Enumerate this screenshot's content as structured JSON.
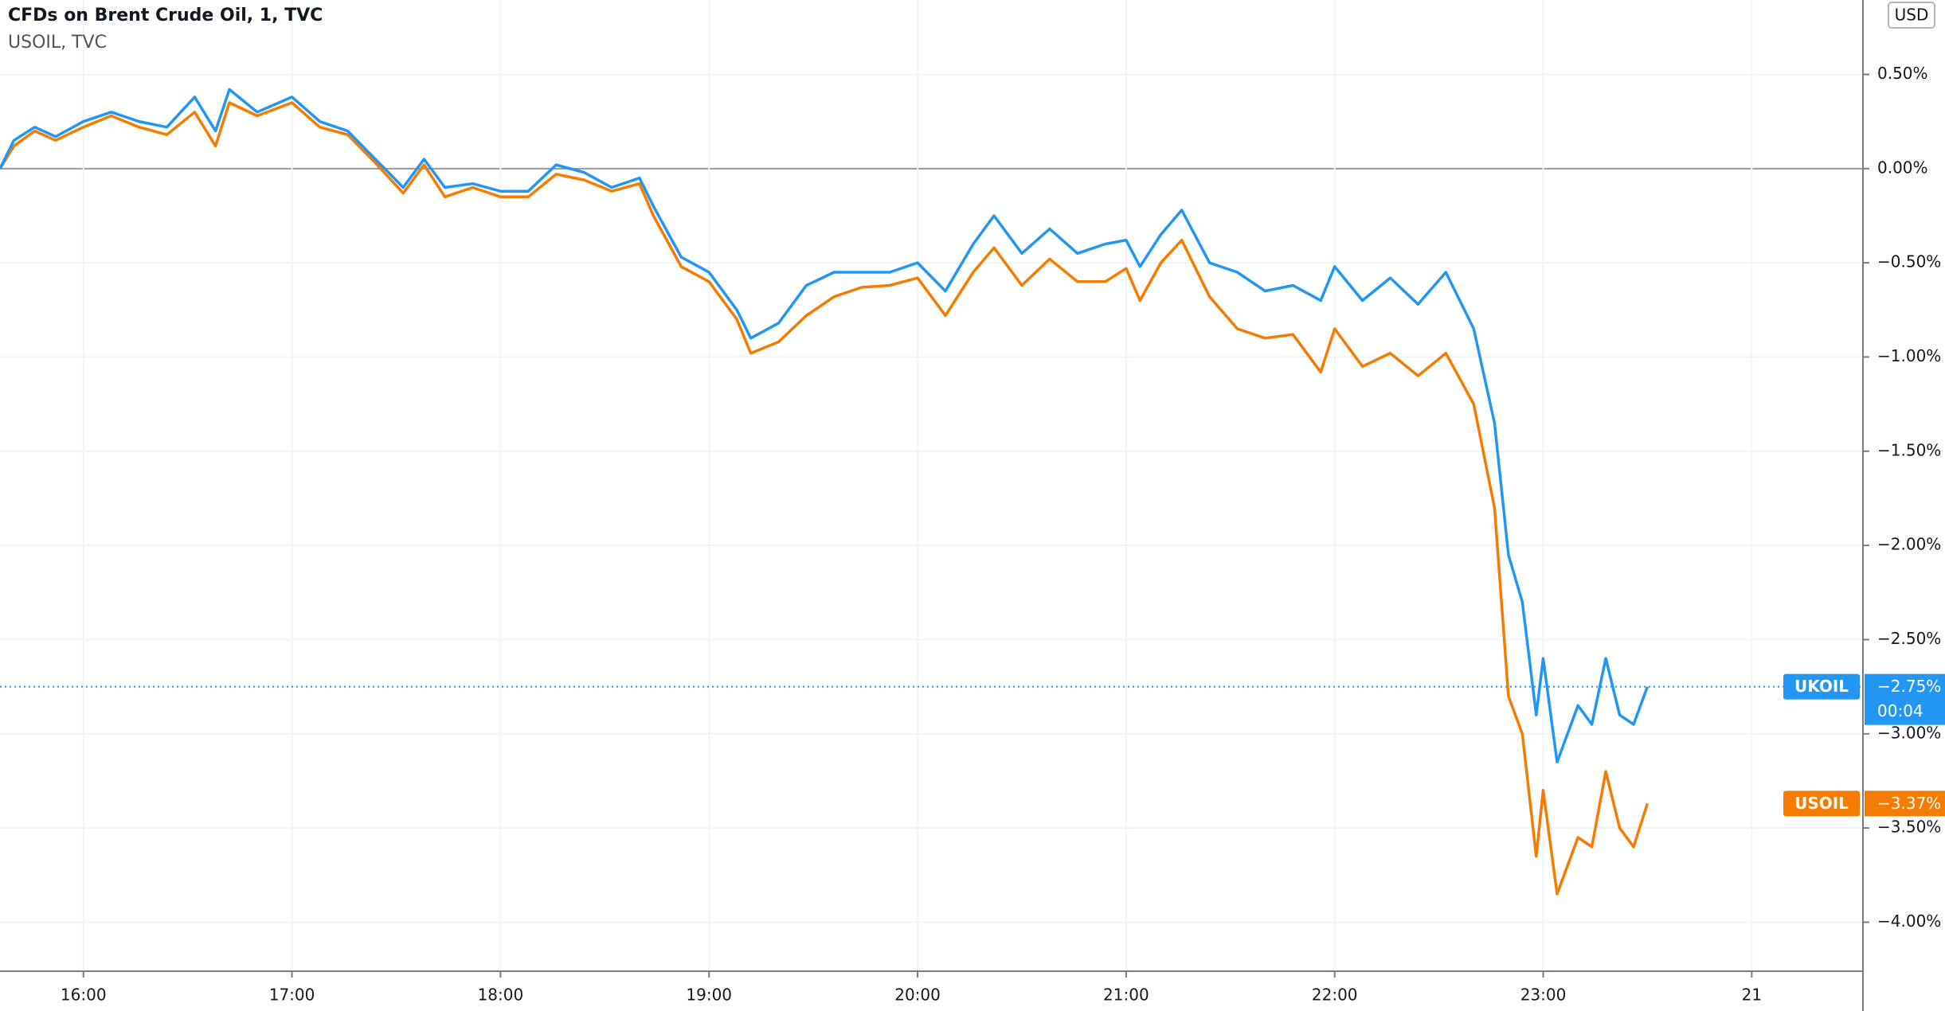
{
  "chart_data": {
    "type": "line",
    "title": "CFDs on Brent Crude Oil, 1, TVC",
    "subtitle": "USOIL, TVC",
    "currency": "USD",
    "countdown": "00:04",
    "x": [
      "15:36",
      "15:40",
      "15:46",
      "15:52",
      "16:00",
      "16:08",
      "16:16",
      "16:24",
      "16:32",
      "16:38",
      "16:42",
      "16:50",
      "17:00",
      "17:08",
      "17:16",
      "17:24",
      "17:32",
      "17:38",
      "17:44",
      "17:52",
      "18:00",
      "18:08",
      "18:16",
      "18:24",
      "18:32",
      "18:40",
      "18:44",
      "18:52",
      "19:00",
      "19:08",
      "19:12",
      "19:20",
      "19:28",
      "19:36",
      "19:44",
      "19:52",
      "20:00",
      "20:08",
      "20:16",
      "20:22",
      "20:30",
      "20:38",
      "20:46",
      "20:54",
      "21:00",
      "21:04",
      "21:10",
      "21:16",
      "21:24",
      "21:32",
      "21:40",
      "21:48",
      "21:56",
      "22:00",
      "22:08",
      "22:16",
      "22:24",
      "22:32",
      "22:40",
      "22:46",
      "22:50",
      "22:54",
      "22:58",
      "23:00",
      "23:04",
      "23:10",
      "23:14",
      "23:18",
      "23:22",
      "23:26",
      "23:30"
    ],
    "series": [
      {
        "name": "UKOIL",
        "color": "#2196f3",
        "last_value_label": "−2.75%",
        "values": [
          0.0,
          0.15,
          0.22,
          0.17,
          0.25,
          0.3,
          0.25,
          0.22,
          0.38,
          0.2,
          0.42,
          0.3,
          0.38,
          0.25,
          0.2,
          0.05,
          -0.1,
          0.05,
          -0.1,
          -0.08,
          -0.12,
          -0.12,
          0.02,
          -0.02,
          -0.1,
          -0.05,
          -0.2,
          -0.47,
          -0.55,
          -0.75,
          -0.9,
          -0.82,
          -0.62,
          -0.55,
          -0.55,
          -0.55,
          -0.5,
          -0.65,
          -0.4,
          -0.25,
          -0.45,
          -0.32,
          -0.45,
          -0.4,
          -0.38,
          -0.52,
          -0.35,
          -0.22,
          -0.5,
          -0.55,
          -0.65,
          -0.62,
          -0.7,
          -0.52,
          -0.7,
          -0.58,
          -0.72,
          -0.55,
          -0.85,
          -1.35,
          -2.05,
          -2.3,
          -2.9,
          -2.6,
          -3.15,
          -2.85,
          -2.95,
          -2.6,
          -2.9,
          -2.95,
          -2.75
        ]
      },
      {
        "name": "USOIL",
        "color": "#f57c00",
        "last_value_label": "−3.37%",
        "values": [
          0.0,
          0.12,
          0.2,
          0.15,
          0.22,
          0.28,
          0.22,
          0.18,
          0.3,
          0.12,
          0.35,
          0.28,
          0.35,
          0.22,
          0.18,
          0.03,
          -0.13,
          0.02,
          -0.15,
          -0.1,
          -0.15,
          -0.15,
          -0.03,
          -0.06,
          -0.12,
          -0.08,
          -0.25,
          -0.52,
          -0.6,
          -0.8,
          -0.98,
          -0.92,
          -0.78,
          -0.68,
          -0.63,
          -0.62,
          -0.58,
          -0.78,
          -0.55,
          -0.42,
          -0.62,
          -0.48,
          -0.6,
          -0.6,
          -0.53,
          -0.7,
          -0.5,
          -0.38,
          -0.68,
          -0.85,
          -0.9,
          -0.88,
          -1.08,
          -0.85,
          -1.05,
          -0.98,
          -1.1,
          -0.98,
          -1.25,
          -1.8,
          -2.8,
          -3.0,
          -3.65,
          -3.3,
          -3.85,
          -3.55,
          -3.6,
          -3.2,
          -3.5,
          -3.6,
          -3.37
        ]
      }
    ],
    "xlim": [
      "15:36",
      "24:32"
    ],
    "xticks": [
      "16:00",
      "17:00",
      "18:00",
      "19:00",
      "20:00",
      "21:00",
      "22:00",
      "23:00",
      {
        "value": "24:00",
        "label": "21"
      }
    ],
    "ylim": [
      -4.26,
      0.895
    ],
    "yticks": [
      {
        "value": 0.5,
        "label": "0.50%"
      },
      {
        "value": 0,
        "label": "0.00%"
      },
      {
        "value": -0.5,
        "label": "−0.50%"
      },
      {
        "value": -1,
        "label": "−1.00%"
      },
      {
        "value": -1.5,
        "label": "−1.50%"
      },
      {
        "value": -2,
        "label": "−2.00%"
      },
      {
        "value": -2.5,
        "label": "−2.50%"
      },
      {
        "value": -3,
        "label": "−3.00%"
      },
      {
        "value": -3.5,
        "label": "−3.50%"
      },
      {
        "value": -4,
        "label": "−4.00%"
      }
    ],
    "grid": true
  }
}
